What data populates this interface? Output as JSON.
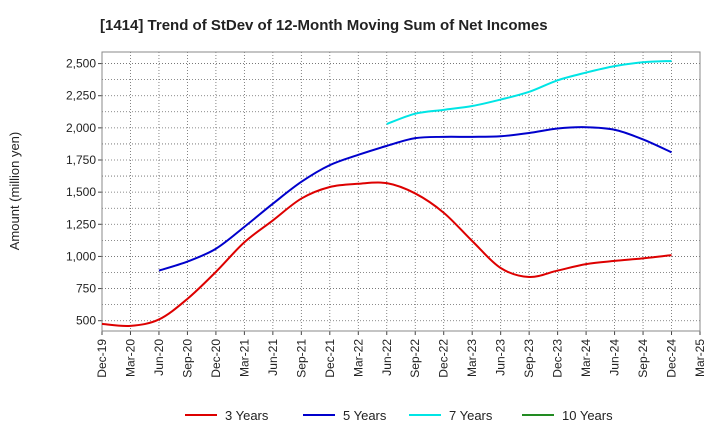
{
  "chart_data": {
    "type": "line",
    "title": "[1414]  Trend of StDev of 12-Month Moving Sum of Net Incomes",
    "ylabel": "Amount (million yen)",
    "xlabel": "",
    "ylim": [
      420,
      2590
    ],
    "yticks": [
      500,
      750,
      1000,
      1250,
      1500,
      1750,
      2000,
      2250,
      2500
    ],
    "ytick_labels": [
      "500",
      "750",
      "1,000",
      "1,250",
      "1,500",
      "1,750",
      "2,000",
      "2,250",
      "2,500"
    ],
    "x_categories": [
      "Dec-19",
      "Mar-20",
      "Jun-20",
      "Sep-20",
      "Dec-20",
      "Mar-21",
      "Jun-21",
      "Sep-21",
      "Dec-21",
      "Mar-22",
      "Jun-22",
      "Sep-22",
      "Dec-22",
      "Mar-23",
      "Jun-23",
      "Sep-23",
      "Dec-23",
      "Mar-24",
      "Jun-24",
      "Sep-24",
      "Dec-24",
      "Mar-25"
    ],
    "grid": true,
    "legend_position": "bottom",
    "series": [
      {
        "name": "3 Years",
        "color": "#dd0000",
        "values": [
          475,
          460,
          510,
          670,
          880,
          1110,
          1280,
          1450,
          1540,
          1565,
          1570,
          1490,
          1340,
          1120,
          910,
          840,
          890,
          940,
          965,
          985,
          1010,
          null
        ]
      },
      {
        "name": "5 Years",
        "color": "#0000cc",
        "values": [
          null,
          null,
          890,
          960,
          1060,
          1230,
          1410,
          1580,
          1710,
          1790,
          1860,
          1920,
          1930,
          1930,
          1935,
          1960,
          1995,
          2005,
          1985,
          1910,
          1810,
          null
        ]
      },
      {
        "name": "7 Years",
        "color": "#00e5e5",
        "values": [
          null,
          null,
          null,
          null,
          null,
          null,
          null,
          null,
          null,
          null,
          2030,
          2110,
          2140,
          2170,
          2220,
          2280,
          2370,
          2430,
          2480,
          2510,
          2520,
          null
        ]
      },
      {
        "name": "10 Years",
        "color": "#228b22",
        "values": [
          null,
          null,
          null,
          null,
          null,
          null,
          null,
          null,
          null,
          null,
          null,
          null,
          null,
          null,
          null,
          null,
          null,
          null,
          null,
          null,
          null,
          null
        ]
      }
    ]
  }
}
